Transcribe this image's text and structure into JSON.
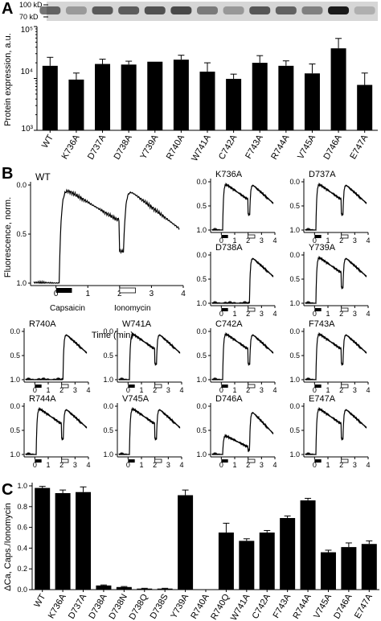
{
  "panel_labels": [
    "A",
    "B",
    "C"
  ],
  "blot": {
    "markers": [
      "100 kD",
      "70 kD"
    ]
  },
  "chart_data": [
    {
      "type": "bar",
      "panel": "A",
      "ylabel": "Protein expression, a.u.",
      "yscale": "log",
      "ylim": [
        1000,
        100000
      ],
      "yticks": [
        "10⁵",
        "10⁴",
        "10³"
      ],
      "categories": [
        "WT",
        "K736A",
        "D737A",
        "D738A",
        "Y739A",
        "R740A",
        "W741A",
        "C742A",
        "F743A",
        "R744A",
        "V745A",
        "D746A",
        "E747A"
      ],
      "values": [
        17500,
        9500,
        19000,
        18500,
        21000,
        23000,
        13500,
        9800,
        20000,
        17500,
        12500,
        38000,
        7500
      ],
      "errors": [
        8000,
        3200,
        4500,
        3000,
        0,
        5000,
        6500,
        2300,
        7500,
        4300,
        6500,
        21000,
        5200
      ]
    },
    {
      "type": "line",
      "panel": "B",
      "ylabel": "Fluorescence, norm.",
      "xlabel": "Time (min)",
      "xticks": [
        "0",
        "1",
        "2",
        "3",
        "4"
      ],
      "yticks": [
        "0.0",
        "0.5",
        "1.0"
      ],
      "annotations": [
        "Capsaicin",
        "Ionomycin"
      ],
      "stimuli": {
        "capsaicin": [
          0,
          0.5
        ],
        "ionomycin": [
          2,
          2.5
        ]
      },
      "series": [
        {
          "name": "WT",
          "shape": "both"
        },
        {
          "name": "K736A",
          "shape": "both"
        },
        {
          "name": "D737A",
          "shape": "both"
        },
        {
          "name": "D738A",
          "shape": "iono"
        },
        {
          "name": "Y739A",
          "shape": "both"
        },
        {
          "name": "R740A",
          "shape": "iono"
        },
        {
          "name": "W741A",
          "shape": "both"
        },
        {
          "name": "C742A",
          "shape": "both"
        },
        {
          "name": "F743A",
          "shape": "both"
        },
        {
          "name": "R744A",
          "shape": "both"
        },
        {
          "name": "V745A",
          "shape": "both"
        },
        {
          "name": "D746A",
          "shape": "smallboth"
        },
        {
          "name": "E747A",
          "shape": "both"
        }
      ]
    },
    {
      "type": "bar",
      "panel": "C",
      "ylabel": "ΔCa, Caps./Ionomycin",
      "ylim": [
        0,
        1.0
      ],
      "yticks": [
        "0.0",
        "0.2",
        "0.4",
        "0.6",
        "0.8",
        "1.0"
      ],
      "categories": [
        "WT",
        "K736A",
        "D737A",
        "D738A",
        "D738N",
        "D738Q",
        "D738S",
        "Y739A",
        "R740A",
        "R740Q",
        "W741A",
        "C742A",
        "F743A",
        "R744A",
        "V745A",
        "D746A",
        "E747A"
      ],
      "values": [
        0.98,
        0.93,
        0.94,
        0.04,
        0.025,
        0.01,
        0.01,
        0.91,
        0.0,
        0.55,
        0.47,
        0.55,
        0.69,
        0.86,
        0.36,
        0.41,
        0.44
      ],
      "errors": [
        0.015,
        0.03,
        0.05,
        0.005,
        0.005,
        0.003,
        0.003,
        0.05,
        0.0,
        0.09,
        0.02,
        0.02,
        0.02,
        0.02,
        0.02,
        0.04,
        0.03
      ]
    }
  ]
}
